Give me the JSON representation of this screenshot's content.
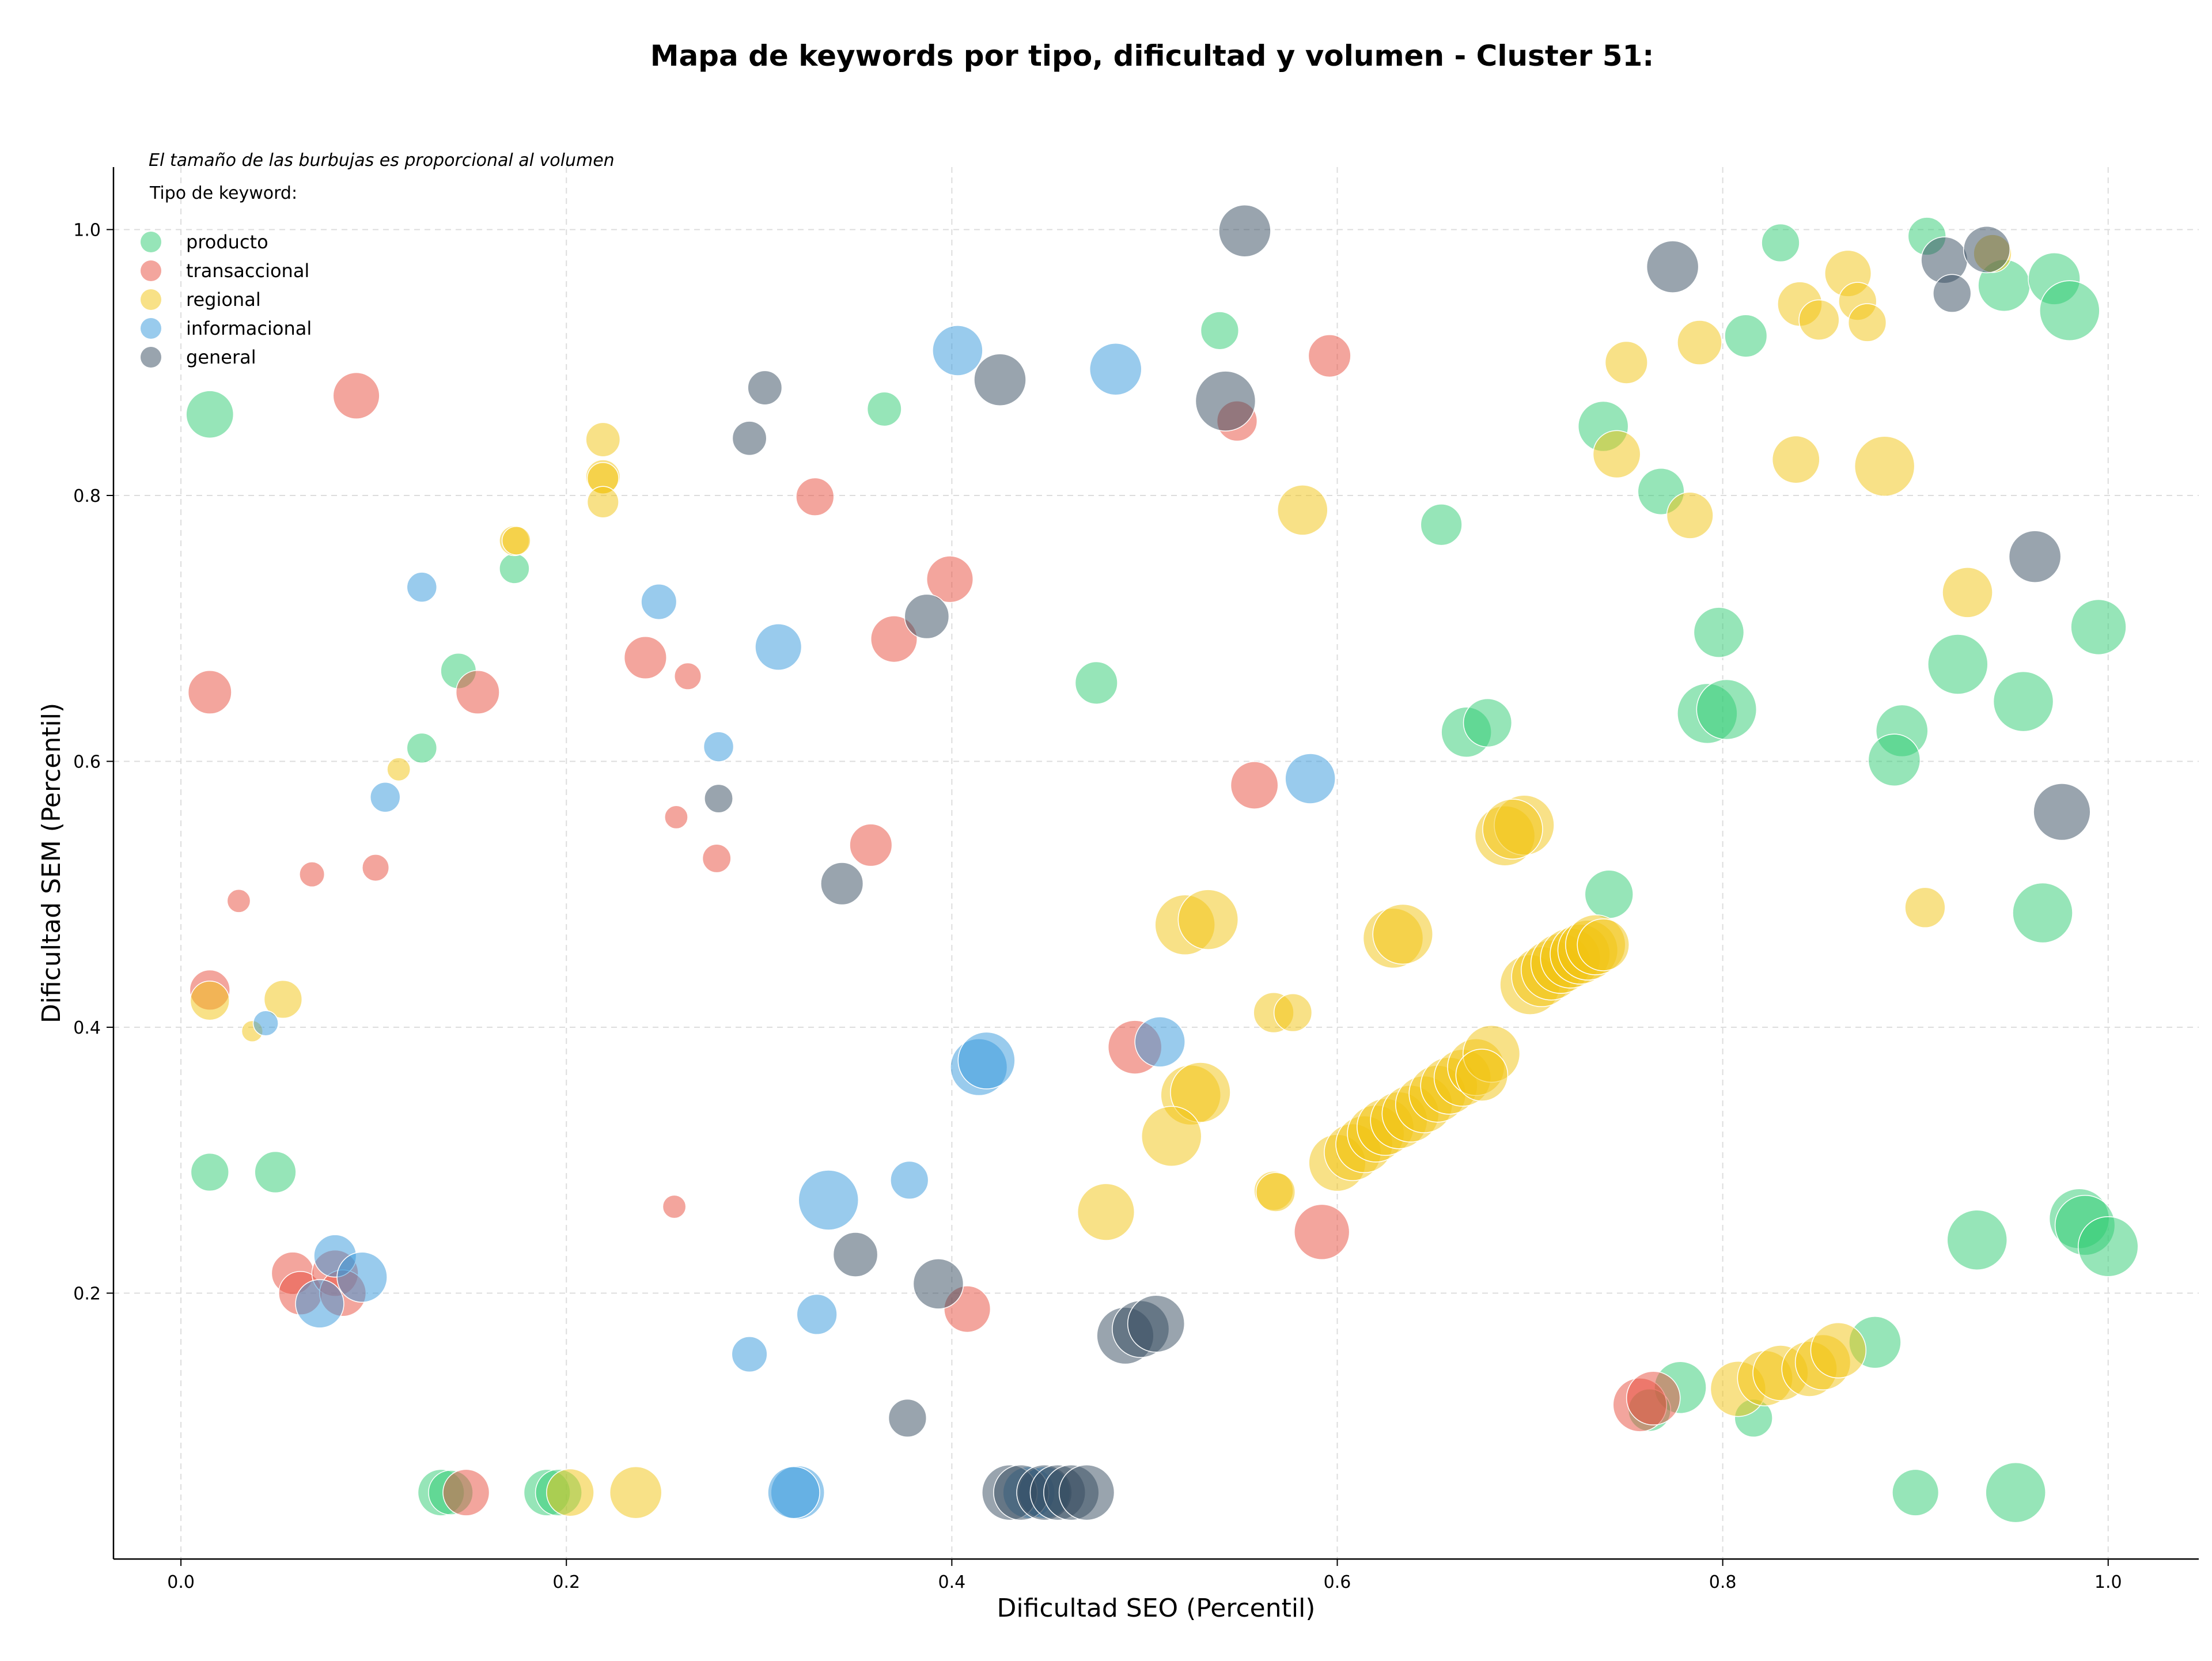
{
  "chart_data": {
    "type": "scatter",
    "title": "Mapa de keywords por tipo, dificultad y volumen - Cluster 51:",
    "xlabel": "Dificultad SEO (Percentil)",
    "ylabel": "Dificultad SEM (Percentil)",
    "xlim": [
      -0.035,
      1.047
    ],
    "ylim": [
      0.0,
      1.047
    ],
    "xticks": [
      "0.0",
      "0.2",
      "0.4",
      "0.6",
      "0.8",
      "1.0"
    ],
    "yticks": [
      "0.2",
      "0.4",
      "0.6",
      "0.8",
      "1.0"
    ],
    "grid": true,
    "note": "El tamaño de las burbujas es proporcional al volumen",
    "legend": {
      "placement": "top-left",
      "title": "Tipo de keyword:",
      "entries": [
        {
          "label": "producto",
          "color": "#2ecc71"
        },
        {
          "label": "transaccional",
          "color": "#e74c3c"
        },
        {
          "label": "regional",
          "color": "#f1c40f"
        },
        {
          "label": "informacional",
          "color": "#3498db"
        },
        {
          "label": "general",
          "color": "#34495e"
        }
      ]
    },
    "series": [
      {
        "name": "producto",
        "color": "#2ecc71",
        "points": [
          [
            0.015,
            0.861,
            2.5
          ],
          [
            0.144,
            0.668,
            1.4
          ],
          [
            0.125,
            0.61,
            1.0
          ],
          [
            0.173,
            0.745,
            1.0
          ],
          [
            0.015,
            0.291,
            1.6
          ],
          [
            0.049,
            0.291,
            1.9
          ],
          [
            0.135,
            0.05,
            2.4
          ],
          [
            0.14,
            0.05,
            2.2
          ],
          [
            0.19,
            0.05,
            2.4
          ],
          [
            0.196,
            0.05,
            2.4
          ],
          [
            0.365,
            0.865,
            1.3
          ],
          [
            0.539,
            0.924,
            1.6
          ],
          [
            0.475,
            0.659,
            2.0
          ],
          [
            0.654,
            0.778,
            1.9
          ],
          [
            0.667,
            0.622,
            2.8
          ],
          [
            0.678,
            0.629,
            2.6
          ],
          [
            0.738,
            0.852,
            2.8
          ],
          [
            0.768,
            0.803,
            2.4
          ],
          [
            0.741,
            0.5,
            2.6
          ],
          [
            0.812,
            0.92,
            2.0
          ],
          [
            0.83,
            0.99,
            1.6
          ],
          [
            0.798,
            0.697,
            2.8
          ],
          [
            0.792,
            0.636,
            4.0
          ],
          [
            0.802,
            0.639,
            4.0
          ],
          [
            0.906,
            0.995,
            1.6
          ],
          [
            0.946,
            0.958,
            3.0
          ],
          [
            0.972,
            0.963,
            3.0
          ],
          [
            0.98,
            0.939,
            4.0
          ],
          [
            0.995,
            0.701,
            3.4
          ],
          [
            0.922,
            0.673,
            4.0
          ],
          [
            0.956,
            0.645,
            4.0
          ],
          [
            0.893,
            0.623,
            3.0
          ],
          [
            0.889,
            0.601,
            3.0
          ],
          [
            0.966,
            0.486,
            4.0
          ],
          [
            0.778,
            0.129,
            3.0
          ],
          [
            0.762,
            0.112,
            2.0
          ],
          [
            0.816,
            0.106,
            1.6
          ],
          [
            0.879,
            0.163,
            3.0
          ],
          [
            0.932,
            0.24,
            4.0
          ],
          [
            0.985,
            0.256,
            4.0
          ],
          [
            0.988,
            0.251,
            4.0
          ],
          [
            1.0,
            0.235,
            4.0
          ],
          [
            0.9,
            0.05,
            2.4
          ],
          [
            0.952,
            0.05,
            4.0
          ]
        ]
      },
      {
        "name": "transaccional",
        "color": "#e74c3c",
        "points": [
          [
            0.091,
            0.875,
            2.4
          ],
          [
            0.015,
            0.652,
            2.1
          ],
          [
            0.154,
            0.652,
            2.1
          ],
          [
            0.03,
            0.495,
            0.6
          ],
          [
            0.068,
            0.515,
            0.7
          ],
          [
            0.101,
            0.52,
            0.8
          ],
          [
            0.015,
            0.428,
            1.8
          ],
          [
            0.058,
            0.215,
            2.0
          ],
          [
            0.062,
            0.2,
            2.1
          ],
          [
            0.08,
            0.215,
            2.4
          ],
          [
            0.084,
            0.2,
            2.4
          ],
          [
            0.148,
            0.05,
            2.4
          ],
          [
            0.329,
            0.799,
            1.6
          ],
          [
            0.399,
            0.737,
            2.4
          ],
          [
            0.241,
            0.678,
            2.0
          ],
          [
            0.263,
            0.664,
            0.8
          ],
          [
            0.37,
            0.692,
            2.4
          ],
          [
            0.257,
            0.558,
            0.6
          ],
          [
            0.278,
            0.527,
            0.9
          ],
          [
            0.358,
            0.537,
            2.0
          ],
          [
            0.256,
            0.265,
            0.6
          ],
          [
            0.408,
            0.188,
            2.4
          ],
          [
            0.596,
            0.905,
            2.0
          ],
          [
            0.548,
            0.856,
            1.8
          ],
          [
            0.557,
            0.582,
            2.5
          ],
          [
            0.495,
            0.385,
            3.2
          ],
          [
            0.592,
            0.246,
            3.4
          ],
          [
            0.757,
            0.116,
            3.2
          ],
          [
            0.764,
            0.121,
            3.2
          ]
        ]
      },
      {
        "name": "regional",
        "color": "#f1c40f",
        "points": [
          [
            0.219,
            0.842,
            1.3
          ],
          [
            0.219,
            0.814,
            1.3
          ],
          [
            0.219,
            0.813,
            1.1
          ],
          [
            0.219,
            0.795,
            1.1
          ],
          [
            0.173,
            0.766,
            1.0
          ],
          [
            0.174,
            0.766,
            0.9
          ],
          [
            0.113,
            0.594,
            0.6
          ],
          [
            0.053,
            0.421,
            1.6
          ],
          [
            0.015,
            0.42,
            1.7
          ],
          [
            0.037,
            0.397,
            0.5
          ],
          [
            0.202,
            0.05,
            2.5
          ],
          [
            0.236,
            0.05,
            3.0
          ],
          [
            0.582,
            0.789,
            2.8
          ],
          [
            0.687,
            0.544,
            4.0
          ],
          [
            0.697,
            0.552,
            4.0
          ],
          [
            0.691,
            0.549,
            4.0
          ],
          [
            0.521,
            0.477,
            4.0
          ],
          [
            0.533,
            0.481,
            4.0
          ],
          [
            0.629,
            0.467,
            4.0
          ],
          [
            0.634,
            0.47,
            4.0
          ],
          [
            0.567,
            0.411,
            1.8
          ],
          [
            0.577,
            0.411,
            1.6
          ],
          [
            0.524,
            0.349,
            4.0
          ],
          [
            0.529,
            0.351,
            4.0
          ],
          [
            0.514,
            0.318,
            4.0
          ],
          [
            0.48,
            0.261,
            3.6
          ],
          [
            0.567,
            0.277,
            1.7
          ],
          [
            0.568,
            0.276,
            1.7
          ],
          [
            0.6,
            0.298,
            3.6
          ],
          [
            0.608,
            0.306,
            3.6
          ],
          [
            0.614,
            0.312,
            3.6
          ],
          [
            0.62,
            0.32,
            3.6
          ],
          [
            0.625,
            0.325,
            3.6
          ],
          [
            0.632,
            0.33,
            3.6
          ],
          [
            0.638,
            0.335,
            3.6
          ],
          [
            0.645,
            0.342,
            3.6
          ],
          [
            0.652,
            0.35,
            3.6
          ],
          [
            0.658,
            0.356,
            3.6
          ],
          [
            0.665,
            0.362,
            3.6
          ],
          [
            0.672,
            0.37,
            3.6
          ],
          [
            0.68,
            0.38,
            3.6
          ],
          [
            0.675,
            0.364,
            3.0
          ],
          [
            0.7,
            0.432,
            4.0
          ],
          [
            0.706,
            0.438,
            4.0
          ],
          [
            0.711,
            0.443,
            4.0
          ],
          [
            0.716,
            0.448,
            4.0
          ],
          [
            0.721,
            0.452,
            4.0
          ],
          [
            0.726,
            0.455,
            4.0
          ],
          [
            0.73,
            0.458,
            4.0
          ],
          [
            0.734,
            0.462,
            4.0
          ],
          [
            0.738,
            0.462,
            3.0
          ],
          [
            0.75,
            0.9,
            2.0
          ],
          [
            0.788,
            0.915,
            2.2
          ],
          [
            0.745,
            0.831,
            2.5
          ],
          [
            0.838,
            0.827,
            2.5
          ],
          [
            0.884,
            0.822,
            4.0
          ],
          [
            0.783,
            0.785,
            2.4
          ],
          [
            0.84,
            0.944,
            2.2
          ],
          [
            0.85,
            0.932,
            1.8
          ],
          [
            0.865,
            0.967,
            2.4
          ],
          [
            0.87,
            0.946,
            1.6
          ],
          [
            0.875,
            0.93,
            1.6
          ],
          [
            0.94,
            0.982,
            1.6
          ],
          [
            0.927,
            0.727,
            2.8
          ],
          [
            0.905,
            0.49,
            1.8
          ],
          [
            0.808,
            0.128,
            3.4
          ],
          [
            0.822,
            0.136,
            3.4
          ],
          [
            0.83,
            0.14,
            3.4
          ],
          [
            0.845,
            0.143,
            3.4
          ],
          [
            0.852,
            0.148,
            3.4
          ],
          [
            0.86,
            0.157,
            3.4
          ]
        ]
      },
      {
        "name": "informacional",
        "color": "#3498db",
        "points": [
          [
            0.125,
            0.731,
            1.0
          ],
          [
            0.106,
            0.573,
            1.0
          ],
          [
            0.044,
            0.403,
            0.7
          ],
          [
            0.08,
            0.228,
            2.0
          ],
          [
            0.094,
            0.212,
            2.8
          ],
          [
            0.072,
            0.192,
            2.6
          ],
          [
            0.32,
            0.05,
            3.2
          ],
          [
            0.318,
            0.05,
            3.0
          ],
          [
            0.403,
            0.909,
            2.8
          ],
          [
            0.485,
            0.895,
            3.0
          ],
          [
            0.248,
            0.72,
            1.4
          ],
          [
            0.31,
            0.686,
            2.4
          ],
          [
            0.279,
            0.611,
            1.0
          ],
          [
            0.414,
            0.37,
            3.6
          ],
          [
            0.418,
            0.375,
            3.6
          ],
          [
            0.508,
            0.389,
            2.8
          ],
          [
            0.336,
            0.27,
            4.0
          ],
          [
            0.378,
            0.285,
            1.6
          ],
          [
            0.33,
            0.184,
            1.8
          ],
          [
            0.295,
            0.154,
            1.4
          ],
          [
            0.586,
            0.587,
            2.8
          ],
          [
            0.44,
            0.05,
            3.0
          ],
          [
            0.448,
            0.05,
            3.0
          ]
        ]
      },
      {
        "name": "general",
        "color": "#34495e",
        "points": [
          [
            0.303,
            0.881,
            1.3
          ],
          [
            0.295,
            0.843,
            1.3
          ],
          [
            0.425,
            0.887,
            3.0
          ],
          [
            0.387,
            0.709,
            2.2
          ],
          [
            0.279,
            0.572,
            0.9
          ],
          [
            0.343,
            0.508,
            2.0
          ],
          [
            0.35,
            0.229,
            2.2
          ],
          [
            0.393,
            0.207,
            2.8
          ],
          [
            0.377,
            0.106,
            1.6
          ],
          [
            0.552,
            0.999,
            3.0
          ],
          [
            0.542,
            0.871,
            4.0
          ],
          [
            0.774,
            0.972,
            3.0
          ],
          [
            0.915,
            0.977,
            2.4
          ],
          [
            0.919,
            0.952,
            1.6
          ],
          [
            0.937,
            0.985,
            2.4
          ],
          [
            0.962,
            0.754,
            3.0
          ],
          [
            0.976,
            0.562,
            3.6
          ],
          [
            0.49,
            0.168,
            3.6
          ],
          [
            0.498,
            0.173,
            3.6
          ],
          [
            0.506,
            0.177,
            3.6
          ],
          [
            0.43,
            0.05,
            3.4
          ],
          [
            0.436,
            0.05,
            3.4
          ],
          [
            0.448,
            0.05,
            3.4
          ],
          [
            0.455,
            0.05,
            3.4
          ],
          [
            0.462,
            0.05,
            3.4
          ],
          [
            0.47,
            0.05,
            3.4
          ]
        ]
      }
    ]
  }
}
